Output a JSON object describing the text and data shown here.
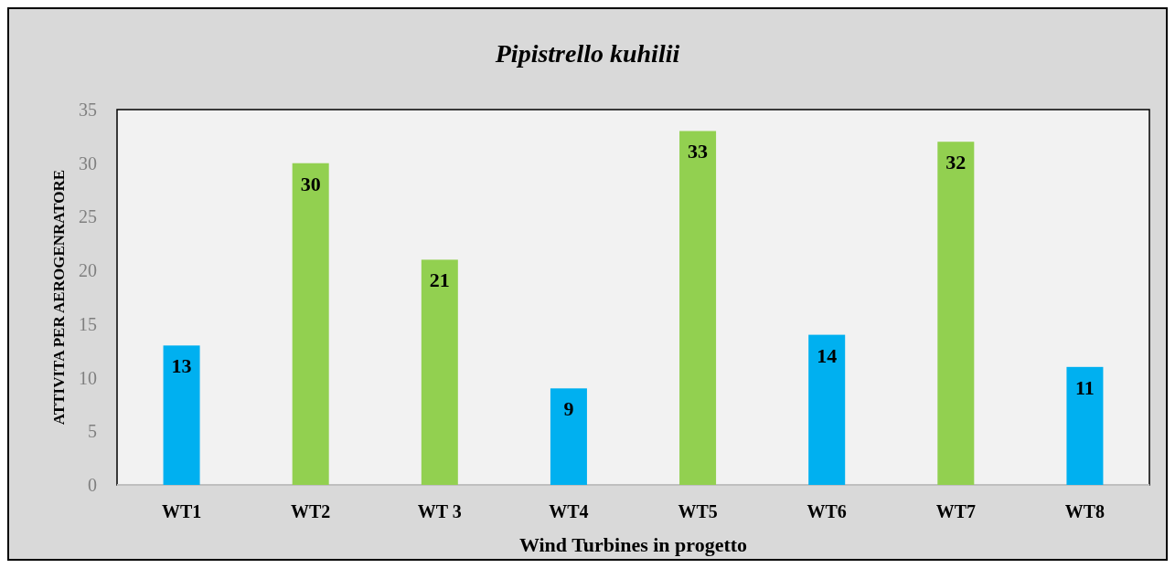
{
  "chart_data": {
    "type": "bar",
    "title": "Pipistrello kuhilii",
    "xlabel": "Wind Turbines in progetto",
    "ylabel": "ATTIVITA PER AEROGENRATORE",
    "categories": [
      "WT1",
      "WT2",
      "WT 3",
      "WT4",
      "WT5",
      "WT6",
      "WT7",
      "WT8"
    ],
    "values": [
      13,
      30,
      21,
      9,
      33,
      14,
      32,
      11
    ],
    "colors": [
      "#00b0f0",
      "#92d050",
      "#92d050",
      "#00b0f0",
      "#92d050",
      "#00b0f0",
      "#92d050",
      "#00b0f0"
    ],
    "ylim": [
      0,
      35
    ],
    "yticks": [
      0,
      5,
      10,
      15,
      20,
      25,
      30,
      35
    ],
    "data_labels": true
  }
}
